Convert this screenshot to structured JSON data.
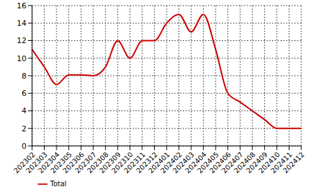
{
  "chart_data": {
    "type": "line",
    "categories": [
      "202302",
      "202303",
      "202304",
      "202305",
      "202306",
      "202307",
      "202308",
      "202309",
      "202310",
      "202311",
      "202312",
      "202401",
      "202402",
      "202403",
      "202404",
      "202405",
      "202406",
      "202407",
      "202408",
      "202409",
      "202410",
      "202411",
      "202412"
    ],
    "series": [
      {
        "name": "Total",
        "color": "#cc0000",
        "values": [
          11,
          9,
          7,
          8.1,
          8.1,
          8,
          9,
          12,
          10,
          12,
          12,
          14,
          15,
          13,
          15,
          11,
          6,
          5,
          4,
          3,
          2,
          2,
          2
        ],
        "marker": "none",
        "line_style": "solid"
      }
    ],
    "ylim": [
      0,
      16
    ],
    "yticks": [
      0,
      2,
      4,
      6,
      8,
      10,
      12,
      14,
      16
    ],
    "grid": true,
    "legend": "bottom-left"
  }
}
